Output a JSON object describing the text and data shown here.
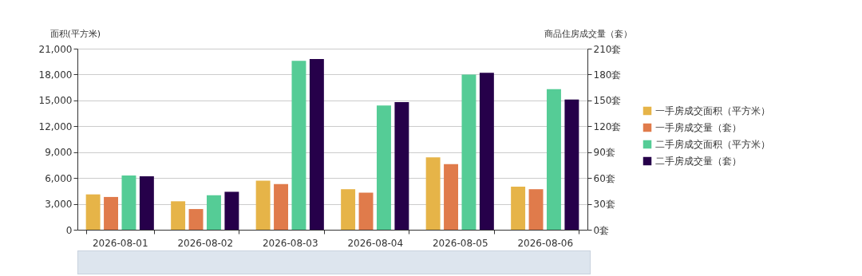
{
  "chart_data": {
    "type": "bar",
    "categories": [
      "2026-08-01",
      "2026-08-02",
      "2026-08-03",
      "2026-08-04",
      "2026-08-05",
      "2026-08-06"
    ],
    "series": [
      {
        "name": "一手房成交面积（平方米）",
        "color": "#e6b448",
        "values": [
          4100,
          3300,
          5700,
          4700,
          8400,
          5000
        ]
      },
      {
        "name": "一手房成交量（套）",
        "color": "#e07b4b",
        "axis": "y2",
        "values": [
          38,
          24,
          53,
          43,
          76,
          47
        ]
      },
      {
        "name": "二手房成交面积（平方米）",
        "color": "#55cc96",
        "values": [
          6300,
          4000,
          19600,
          14400,
          18000,
          16300
        ]
      },
      {
        "name": "二手房成交量（套）",
        "color": "#26004a",
        "axis": "y2",
        "values": [
          62,
          44,
          198,
          148,
          182,
          151
        ]
      }
    ],
    "ylabel": "面积(平方米)",
    "y2label": "商品住房成交量（套）",
    "ylim": [
      0,
      21000
    ],
    "yticks": [
      0,
      {
        "value": 3000,
        "label": "3,000"
      },
      {
        "value": 6000,
        "label": "6,000"
      },
      {
        "value": 9000,
        "label": "9,000"
      },
      {
        "value": 12000,
        "label": "12,000"
      },
      {
        "value": 15000,
        "label": "15,000"
      },
      {
        "value": 18000,
        "label": "18,000"
      },
      {
        "value": 21000,
        "label": "21,000"
      }
    ],
    "y2lim": [
      0,
      210
    ],
    "y2ticks": [
      {
        "value": 0,
        "label": "0套"
      },
      {
        "value": 30,
        "label": "30套"
      },
      {
        "value": 60,
        "label": "60套"
      },
      {
        "value": 90,
        "label": "90套"
      },
      {
        "value": 120,
        "label": "120套"
      },
      {
        "value": 150,
        "label": "150套"
      },
      {
        "value": 180,
        "label": "180套"
      },
      {
        "value": 210,
        "label": "210套"
      }
    ],
    "grid": "y",
    "legend": "right"
  }
}
